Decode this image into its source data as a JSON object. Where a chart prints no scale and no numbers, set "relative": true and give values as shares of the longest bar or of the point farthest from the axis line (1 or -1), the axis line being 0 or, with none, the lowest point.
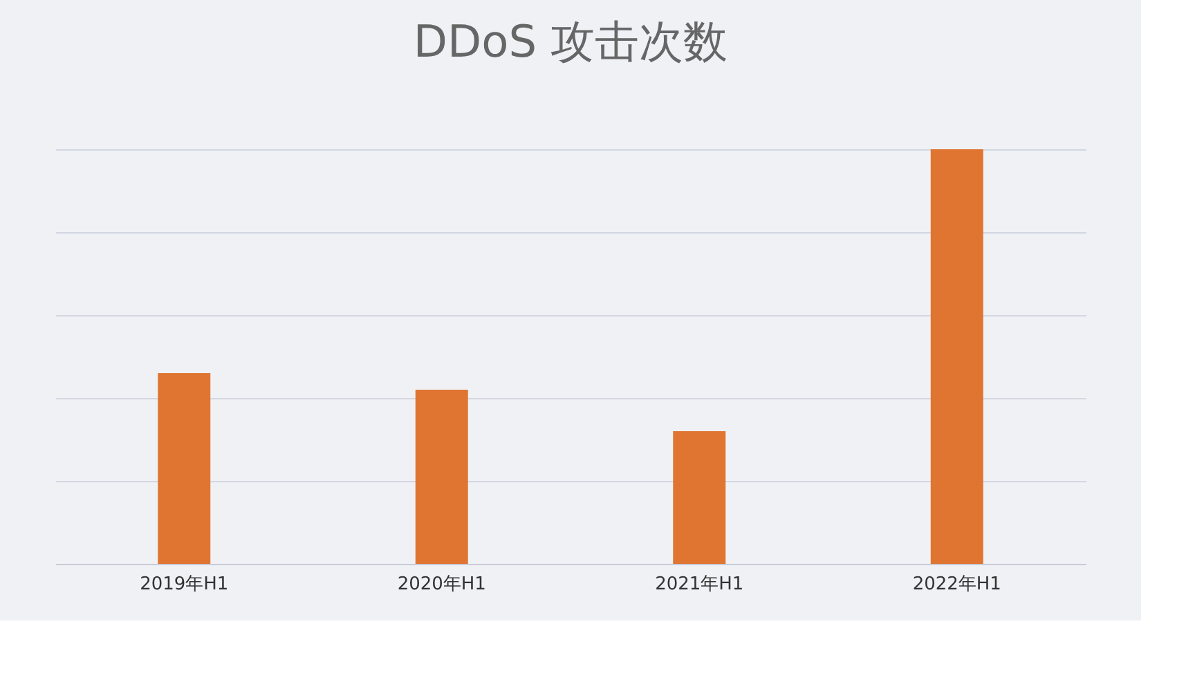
{
  "chart_data": {
    "type": "bar",
    "title": "DDoS 攻击次数",
    "relative": true,
    "categories": [
      "2019年H1",
      "2020年H1",
      "2021年H1",
      "2022年H1"
    ],
    "values": [
      0.46,
      0.42,
      0.32,
      1.0
    ],
    "color": "#e07431",
    "grid": "y"
  }
}
